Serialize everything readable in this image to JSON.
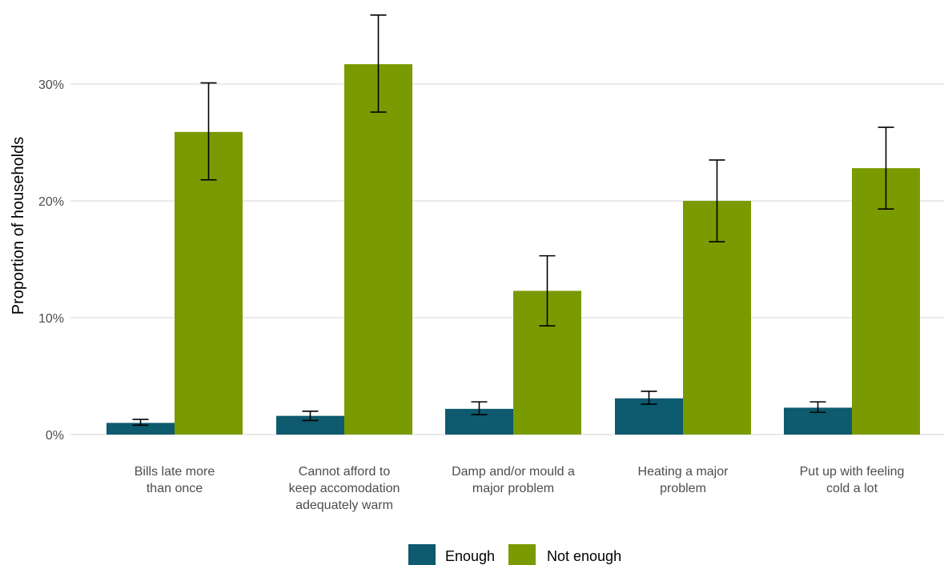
{
  "chart_data": {
    "type": "bar",
    "ylabel": "Proportion of households",
    "ylim": [
      0,
      0.36
    ],
    "yticks": [
      0,
      0.1,
      0.2,
      0.3
    ],
    "ytick_labels": [
      "0%",
      "10%",
      "20%",
      "30%"
    ],
    "grid": true,
    "legend_position": "bottom",
    "categories": [
      [
        "Bills late more",
        "than once"
      ],
      [
        "Cannot afford to",
        "keep accomodation",
        "adequately warm"
      ],
      [
        "Damp and/or mould a",
        "major problem"
      ],
      [
        "Heating a major",
        "problem"
      ],
      [
        "Put up with feeling",
        "cold a lot"
      ]
    ],
    "series": [
      {
        "name": "Enough",
        "color": "#0e5a6e",
        "values": [
          0.01,
          0.016,
          0.022,
          0.031,
          0.023
        ],
        "err_low": [
          0.008,
          0.012,
          0.017,
          0.026,
          0.019
        ],
        "err_high": [
          0.013,
          0.02,
          0.028,
          0.037,
          0.028
        ]
      },
      {
        "name": "Not enough",
        "color": "#7a9a01",
        "values": [
          0.259,
          0.317,
          0.123,
          0.2,
          0.228
        ],
        "err_low": [
          0.218,
          0.276,
          0.093,
          0.165,
          0.193
        ],
        "err_high": [
          0.301,
          0.359,
          0.153,
          0.235,
          0.263
        ]
      }
    ]
  }
}
